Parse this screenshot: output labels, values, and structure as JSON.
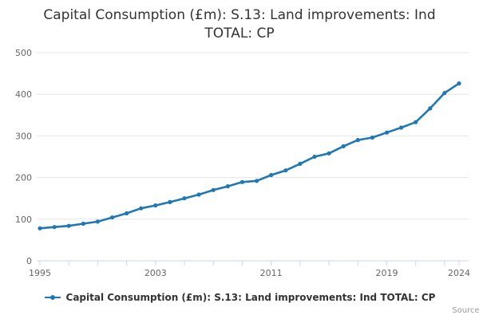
{
  "title": "Capital Consumption (£m): S.13: Land improvements: Ind TOTAL: CP",
  "legend": {
    "label": "Capital Consumption (£m): S.13: Land improvements: Ind TOTAL: CP"
  },
  "credits": {
    "text": "Source:"
  },
  "colors": {
    "line": "#1f77b4",
    "grid": "#e6e6e6",
    "axis": "#ccd6eb",
    "tick_labels": "#666666",
    "title": "#333333",
    "legend_text": "#333333",
    "credits": "#999999"
  },
  "chart_data": {
    "type": "line",
    "title": "Capital Consumption (£m): S.13: Land improvements: Ind TOTAL: CP",
    "xlabel": "",
    "ylabel": "",
    "x": [
      1995,
      1996,
      1997,
      1998,
      1999,
      2000,
      2001,
      2002,
      2003,
      2004,
      2005,
      2006,
      2007,
      2008,
      2009,
      2010,
      2011,
      2012,
      2013,
      2014,
      2015,
      2016,
      2017,
      2018,
      2019,
      2020,
      2021,
      2022,
      2023,
      2024
    ],
    "series": [
      {
        "name": "Capital Consumption (£m): S.13: Land improvements: Ind TOTAL: CP",
        "values": [
          78,
          81,
          84,
          89,
          94,
          104,
          114,
          126,
          133,
          141,
          150,
          159,
          170,
          179,
          189,
          192,
          206,
          217,
          233,
          250,
          258,
          275,
          290,
          296,
          308,
          320,
          333,
          366,
          403,
          426
        ]
      }
    ],
    "xlim": [
      1995,
      2024
    ],
    "ylim": [
      0,
      500
    ],
    "yticks": [
      0,
      100,
      200,
      300,
      400,
      500
    ],
    "xticks_every": 2,
    "xtick_labels": [
      "1995",
      "2003",
      "2011",
      "2019",
      "2024"
    ],
    "xtick_label_years": [
      1995,
      2003,
      2011,
      2019,
      2024
    ],
    "grid": "horizontal",
    "legend_position": "bottom",
    "marker": "circle"
  }
}
